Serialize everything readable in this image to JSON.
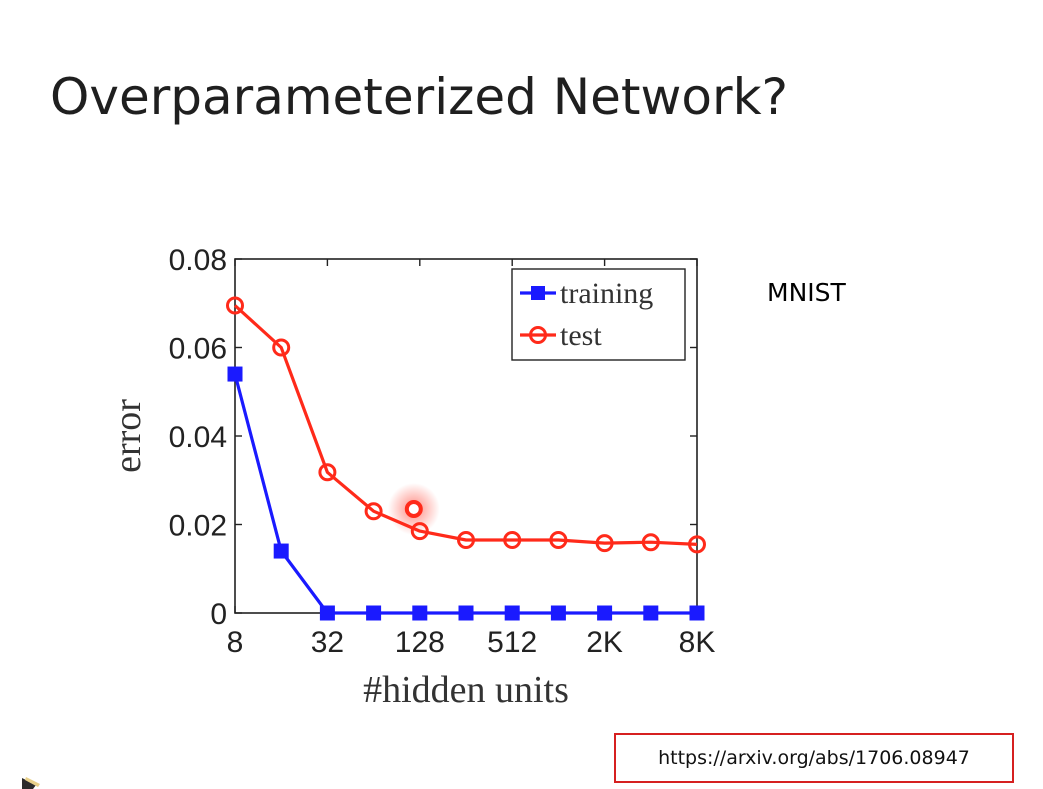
{
  "slide": {
    "title": "Overparameterized Network?",
    "side_label": "MNIST",
    "url": "https://arxiv.org/abs/1706.08947"
  },
  "chart_data": {
    "type": "line",
    "xlabel": "#hidden units",
    "ylabel": "error",
    "x_scale": "log2",
    "x": [
      8,
      16,
      32,
      64,
      128,
      256,
      512,
      1024,
      2048,
      4096,
      8192
    ],
    "x_ticks": [
      8,
      32,
      128,
      512,
      2048,
      8192
    ],
    "x_tick_labels": [
      "8",
      "32",
      "128",
      "512",
      "2K",
      "8K"
    ],
    "y_ticks": [
      0,
      0.02,
      0.04,
      0.06,
      0.08
    ],
    "y_tick_labels": [
      "0",
      "0.02",
      "0.04",
      "0.06",
      "0.08"
    ],
    "ylim": [
      0,
      0.08
    ],
    "grid": false,
    "legend_position": "top-right",
    "series": [
      {
        "name": "training",
        "color": "#1a1aff",
        "marker": "square",
        "values": [
          0.054,
          0.014,
          0,
          0,
          0,
          0,
          0,
          0,
          0,
          0,
          0
        ]
      },
      {
        "name": "test",
        "color": "#ff2a1a",
        "marker": "circle",
        "values": [
          0.0695,
          0.06,
          0.0318,
          0.023,
          0.0185,
          0.0165,
          0.0165,
          0.0165,
          0.0158,
          0.016,
          0.0155
        ]
      }
    ]
  },
  "pointer_highlight": {
    "x": 128,
    "y": 0.0235,
    "color": "#ff2a1a"
  }
}
